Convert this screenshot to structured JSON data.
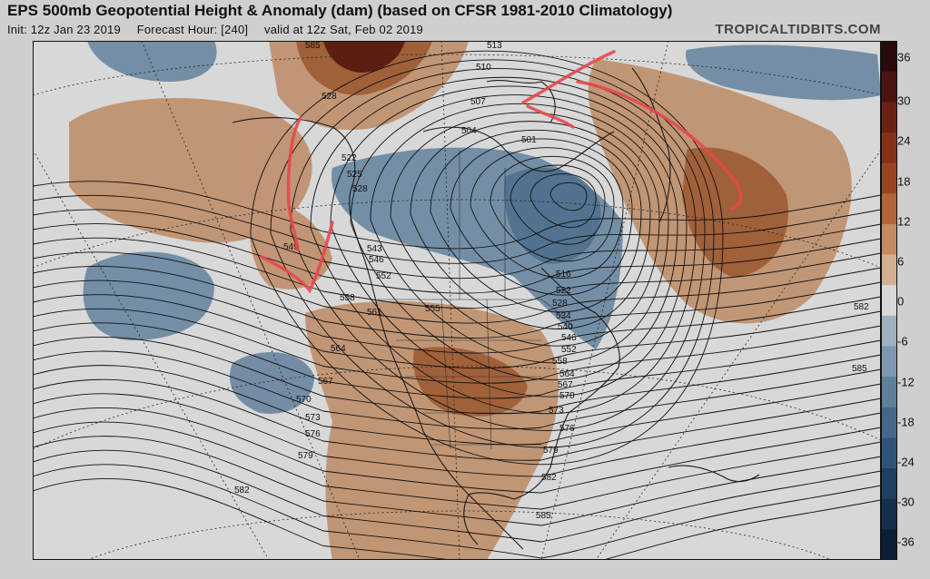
{
  "header": {
    "title": "EPS 500mb Geopotential Height & Anomaly (dam) (based on CFSR 1981-2010 Climatology)",
    "init": "Init: 12z Jan 23 2019",
    "forecast_hour": "Forecast Hour: [240]",
    "valid": "valid at 12z Sat, Feb 02 2019",
    "brand": "TROPICALTIDBITS.COM"
  },
  "colorbar": {
    "ticks": [
      "36",
      "30",
      "24",
      "18",
      "12",
      "6",
      "0",
      "-6",
      "-12",
      "-18",
      "-24",
      "-30",
      "-36"
    ],
    "colors": [
      "#2b0a0d",
      "#4a1410",
      "#6a2113",
      "#863018",
      "#9c4420",
      "#b2643a",
      "#c48a60",
      "#d4af90",
      "#d8d8d8",
      "#9fb0bf",
      "#7d97ae",
      "#5f7f9a",
      "#45688a",
      "#2f5479",
      "#1f3f63",
      "#15304f",
      "#0d1f35"
    ]
  },
  "contour_labels": [
    "513",
    "510",
    "507",
    "504",
    "501",
    "528",
    "522",
    "525",
    "528",
    "549",
    "543",
    "546",
    "552",
    "558",
    "561",
    "555",
    "516",
    "522",
    "528",
    "534",
    "540",
    "546",
    "552",
    "558",
    "564",
    "567",
    "570",
    "573",
    "576",
    "579",
    "582",
    "585",
    "564",
    "567",
    "570",
    "573",
    "576",
    "579",
    "582",
    "582",
    "585",
    "585"
  ],
  "map": {
    "positive_anomaly_color": "#b07a55",
    "negative_anomaly_color": "#5f7f9a",
    "annotation_color": "#e8484d"
  }
}
